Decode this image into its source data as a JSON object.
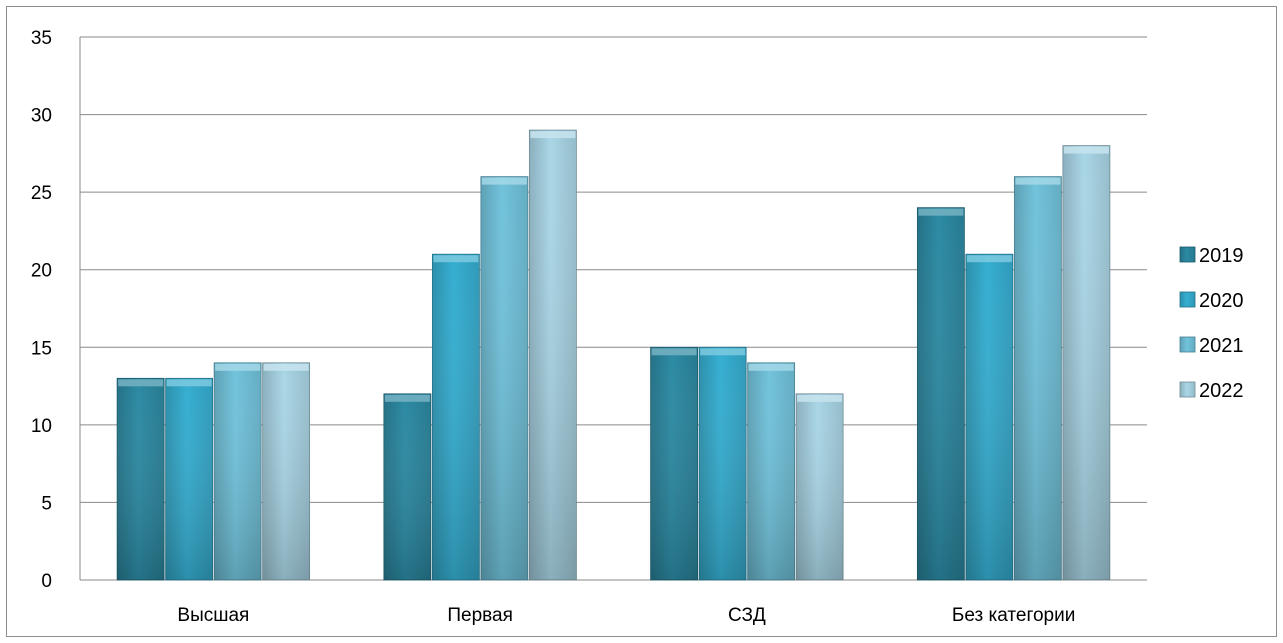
{
  "chart_data": {
    "type": "bar",
    "categories": [
      "Высшая",
      "Первая",
      "СЗД",
      "Без категории"
    ],
    "series": [
      {
        "name": "2019",
        "values": [
          13,
          12,
          15,
          24
        ],
        "color": "#2b8aa3"
      },
      {
        "name": "2020",
        "values": [
          13,
          21,
          15,
          21
        ],
        "color": "#35aed1"
      },
      {
        "name": "2021",
        "values": [
          14,
          26,
          14,
          26
        ],
        "color": "#71c3dc"
      },
      {
        "name": "2022",
        "values": [
          14,
          29,
          12,
          28
        ],
        "color": "#a9d6e6"
      }
    ],
    "title": "",
    "xlabel": "",
    "ylabel": "",
    "ylim": [
      0,
      35
    ],
    "yticks": [
      0,
      5,
      10,
      15,
      20,
      25,
      30,
      35
    ],
    "grid": true,
    "legend": "right"
  }
}
